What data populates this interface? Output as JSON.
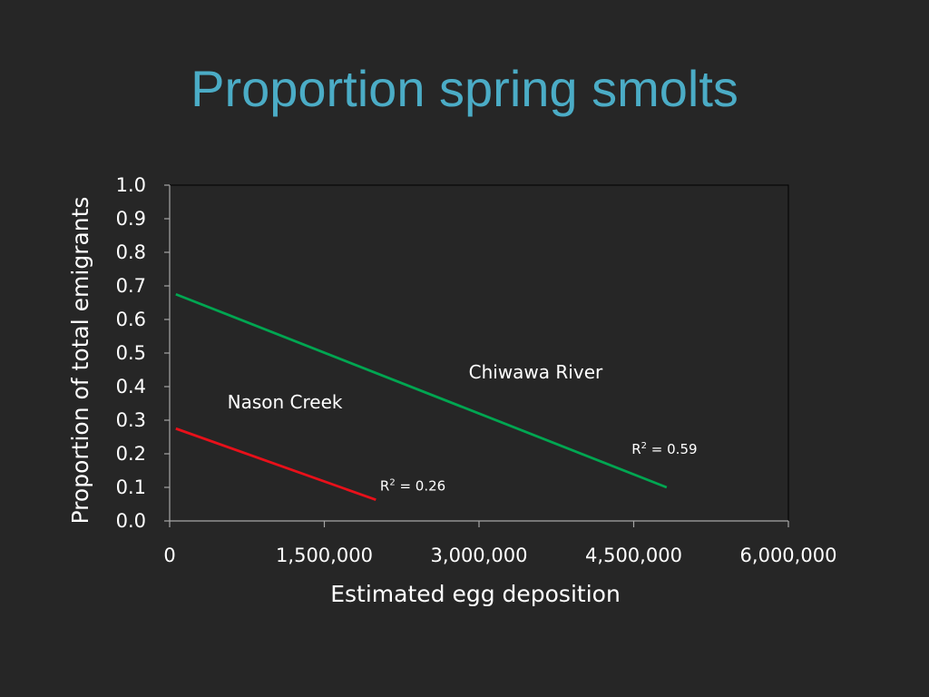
{
  "slide": {
    "title": "Proportion spring smolts"
  },
  "chart_data": {
    "type": "line",
    "title": "",
    "xlabel": "Estimated egg deposition",
    "ylabel": "Proportion of total emigrants",
    "xlim": [
      0,
      6000000
    ],
    "ylim": [
      0,
      1.0
    ],
    "x_ticks": [
      0,
      1500000,
      3000000,
      4500000,
      6000000
    ],
    "x_tick_labels": [
      "0",
      "1,500,000",
      "3,000,000",
      "4,500,000",
      "6,000,000"
    ],
    "y_ticks": [
      0,
      0.1,
      0.2,
      0.3,
      0.4,
      0.5,
      0.6,
      0.7,
      0.8,
      0.9,
      1.0
    ],
    "y_tick_labels": [
      "0.0",
      "0.1",
      "0.2",
      "0.3",
      "0.4",
      "0.5",
      "0.6",
      "0.7",
      "0.8",
      "0.9",
      "1.0"
    ],
    "grid": false,
    "series": [
      {
        "name": "Chiwawa River",
        "color": "#00a651",
        "x": [
          60000,
          4820000
        ],
        "y": [
          0.675,
          0.1
        ],
        "r2_prefix": "R",
        "r2_sup": "2",
        "r2_value": " = 0.59",
        "r2_anchor": [
          4480000,
          0.2
        ],
        "name_anchor": [
          2900000,
          0.425
        ]
      },
      {
        "name": "Nason Creek",
        "color": "#e8101a",
        "x": [
          60000,
          2000000
        ],
        "y": [
          0.275,
          0.063
        ],
        "r2_prefix": "R",
        "r2_sup": "2",
        "r2_value": " = 0.26",
        "r2_anchor": [
          2040000,
          0.09
        ],
        "name_anchor": [
          560000,
          0.335
        ]
      }
    ]
  }
}
